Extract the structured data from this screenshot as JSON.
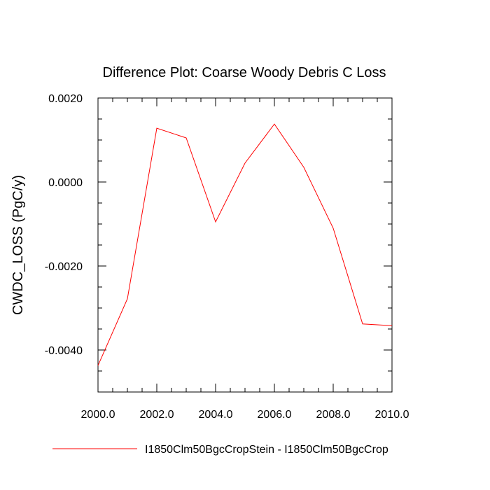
{
  "chart_data": {
    "type": "line",
    "title": "Difference Plot: Coarse Woody Debris C Loss",
    "xlabel": "",
    "ylabel": "CWDC_LOSS  (PgC/y)",
    "xlim": [
      2000,
      2010
    ],
    "ylim": [
      -0.005,
      0.002
    ],
    "x_ticks": [
      2000,
      2002,
      2004,
      2006,
      2008,
      2010
    ],
    "x_tick_labels": [
      "2000.0",
      "2002.0",
      "2004.0",
      "2006.0",
      "2008.0",
      "2010.0"
    ],
    "y_ticks": [
      0.002,
      0.0,
      -0.002,
      -0.004
    ],
    "y_tick_labels": [
      "0.0020",
      "0.0000",
      "-0.0020",
      "-0.0040"
    ],
    "grid": false,
    "legend_position": "bottom",
    "series": [
      {
        "name": "I1850Clm50BgcCropStein - I1850Clm50BgcCrop",
        "color": "#ff0000",
        "x": [
          2000,
          2001,
          2002,
          2003,
          2004,
          2005,
          2006,
          2007,
          2008,
          2009,
          2010
        ],
        "y": [
          -0.00437,
          -0.00278,
          0.00128,
          0.00105,
          -0.00095,
          0.00045,
          0.00138,
          0.00035,
          -0.0011,
          -0.00338,
          -0.00342
        ]
      }
    ]
  }
}
